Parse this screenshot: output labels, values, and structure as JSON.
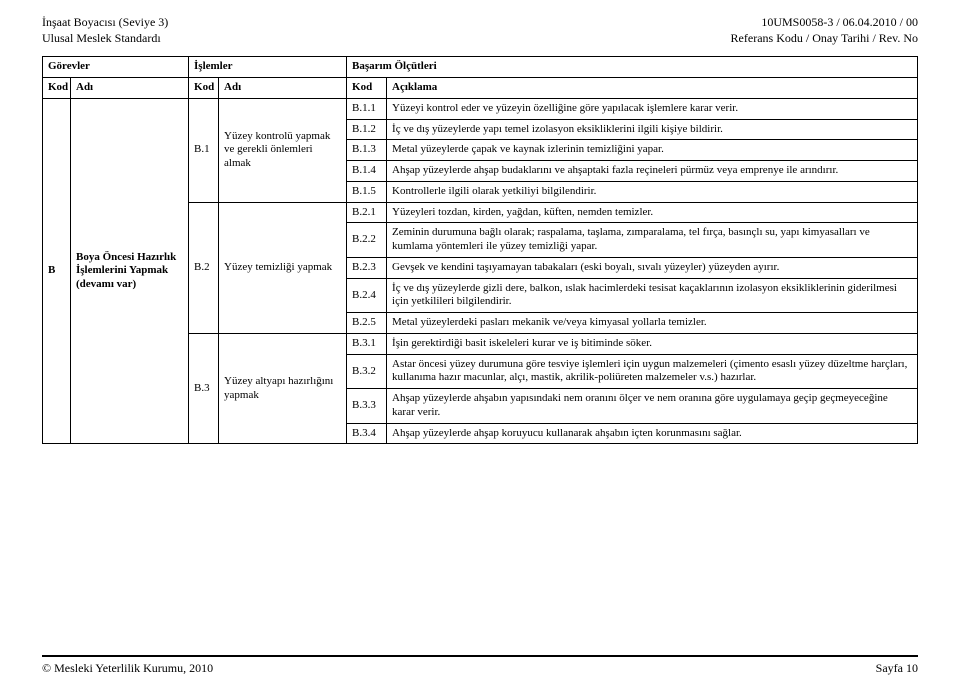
{
  "header": {
    "left1": "İnşaat Boyacısı (Seviye 3)",
    "left2": "Ulusal Meslek Standardı",
    "right1": "10UMS0058-3 / 06.04.2010 / 00",
    "right2": "Referans Kodu / Onay Tarihi / Rev. No"
  },
  "thead": {
    "gorevler": "Görevler",
    "islemler": "İşlemler",
    "basarim": "Başarım Ölçütleri",
    "kod": "Kod",
    "adi": "Adı",
    "aciklama": "Açıklama"
  },
  "row": {
    "b": "B",
    "b_adi": "Boya Öncesi Hazırlık İşlemlerini Yapmak (devamı var)",
    "b1": "B.1",
    "b1_adi": "Yüzey kontrolü yapmak ve gerekli önlemleri almak",
    "b2": "B.2",
    "b2_adi": "Yüzey temizliği yapmak",
    "b3": "B.3",
    "b3_adi": "Yüzey altyapı hazırlığını yapmak"
  },
  "items": {
    "b11": "B.1.1",
    "b11t": "Yüzeyi kontrol eder ve yüzeyin özelliğine göre yapılacak işlemlere karar verir.",
    "b12": "B.1.2",
    "b12t": "İç ve dış yüzeylerde yapı temel izolasyon eksikliklerini ilgili kişiye bildirir.",
    "b13": "B.1.3",
    "b13t": "Metal yüzeylerde çapak ve kaynak izlerinin temizliğini yapar.",
    "b14": "B.1.4",
    "b14t": "Ahşap yüzeylerde ahşap budaklarını ve ahşaptaki fazla reçineleri pürmüz veya emprenye ile arındırır.",
    "b15": "B.1.5",
    "b15t": "Kontrollerle ilgili olarak yetkiliyi bilgilendirir.",
    "b21": "B.2.1",
    "b21t": "Yüzeyleri tozdan, kirden, yağdan, küften, nemden temizler.",
    "b22": "B.2.2",
    "b22t": "Zeminin durumuna bağlı olarak; raspalama, taşlama, zımparalama, tel fırça, basınçlı su, yapı kimyasalları ve kumlama yöntemleri ile yüzey temizliği yapar.",
    "b23": "B.2.3",
    "b23t": "Gevşek ve kendini taşıyamayan tabakaları (eski boyalı, sıvalı yüzeyler) yüzeyden ayırır.",
    "b24": "B.2.4",
    "b24t": "İç ve dış yüzeylerde gizli dere, balkon, ıslak hacimlerdeki tesisat kaçaklarının izolasyon eksikliklerinin giderilmesi için yetkilileri bilgilendirir.",
    "b25": "B.2.5",
    "b25t": "Metal yüzeylerdeki pasları mekanik ve/veya kimyasal yollarla temizler.",
    "b31": "B.3.1",
    "b31t": "İşin gerektirdiği basit iskeleleri kurar ve iş bitiminde söker.",
    "b32": "B.3.2",
    "b32t": "Astar öncesi yüzey durumuna göre tesviye işlemleri için uygun malzemeleri (çimento esaslı yüzey düzeltme harçları, kullanıma hazır macunlar, alçı, mastik, akrilik-poliüreten malzemeler v.s.) hazırlar.",
    "b33": "B.3.3",
    "b33t": "Ahşap yüzeylerde ahşabın yapısındaki nem oranını ölçer ve nem oranına göre uygulamaya geçip geçmeyeceğine karar verir.",
    "b34": "B.3.4",
    "b34t": "Ahşap yüzeylerde ahşap koruyucu kullanarak ahşabın içten korunmasını sağlar."
  },
  "footer": {
    "left": "© Mesleki Yeterlilik Kurumu, 2010",
    "right": "Sayfa 10"
  }
}
